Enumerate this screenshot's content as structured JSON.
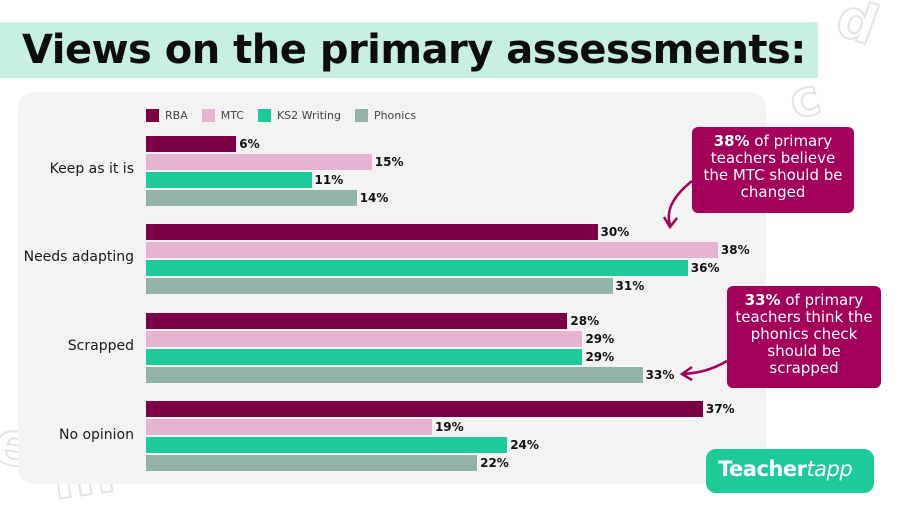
{
  "title": "Views on the primary assessments:",
  "colors": {
    "RBA": "#7a0043",
    "MTC": "#e6b3d3",
    "KS2 Writing": "#1ec99a",
    "Phonics": "#93b3a7",
    "callout": "#a3005a",
    "title_band": "#c8f0e2",
    "brand": "#1ccb97"
  },
  "chart_data": {
    "type": "bar",
    "orientation": "horizontal",
    "categories": [
      "Keep as it is",
      "Needs adapting",
      "Scrapped",
      "No opinion"
    ],
    "series": [
      {
        "name": "RBA",
        "values": [
          6,
          30,
          28,
          37
        ]
      },
      {
        "name": "MTC",
        "values": [
          15,
          38,
          29,
          19
        ]
      },
      {
        "name": "KS2 Writing",
        "values": [
          11,
          36,
          29,
          24
        ]
      },
      {
        "name": "Phonics",
        "values": [
          14,
          31,
          33,
          22
        ]
      }
    ],
    "value_suffix": "%",
    "legend_position": "top-left",
    "grid": false
  },
  "callouts": [
    {
      "highlight": "38%",
      "text": " of primary teachers believe the MTC should be changed"
    },
    {
      "highlight": "33%",
      "text": " of primary teachers think the phonics check should be scrapped"
    }
  ],
  "brand": {
    "part1": "Teacher",
    "part2": "tapp"
  }
}
